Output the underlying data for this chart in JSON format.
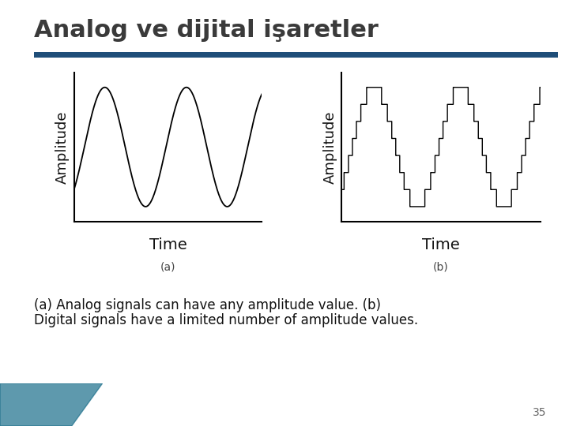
{
  "title": "Analog ve dijital işaretler",
  "title_color": "#3a3a3a",
  "title_fontsize": 22,
  "separator_color": "#1f4e79",
  "bg_color": "#ffffff",
  "label_a": "(a)",
  "label_b": "(b)",
  "xlabel": "Time",
  "ylabel": "Amplitude",
  "caption_line1": "(a) Analog signals can have any amplitude value. (b)",
  "caption_line2": "Digital signals have a limited number of amplitude values.",
  "caption_fontsize": 12,
  "page_number": "35",
  "line_color": "#000000",
  "axis_color": "#000000",
  "ylabel_fontsize": 13,
  "xlabel_fontsize": 14
}
